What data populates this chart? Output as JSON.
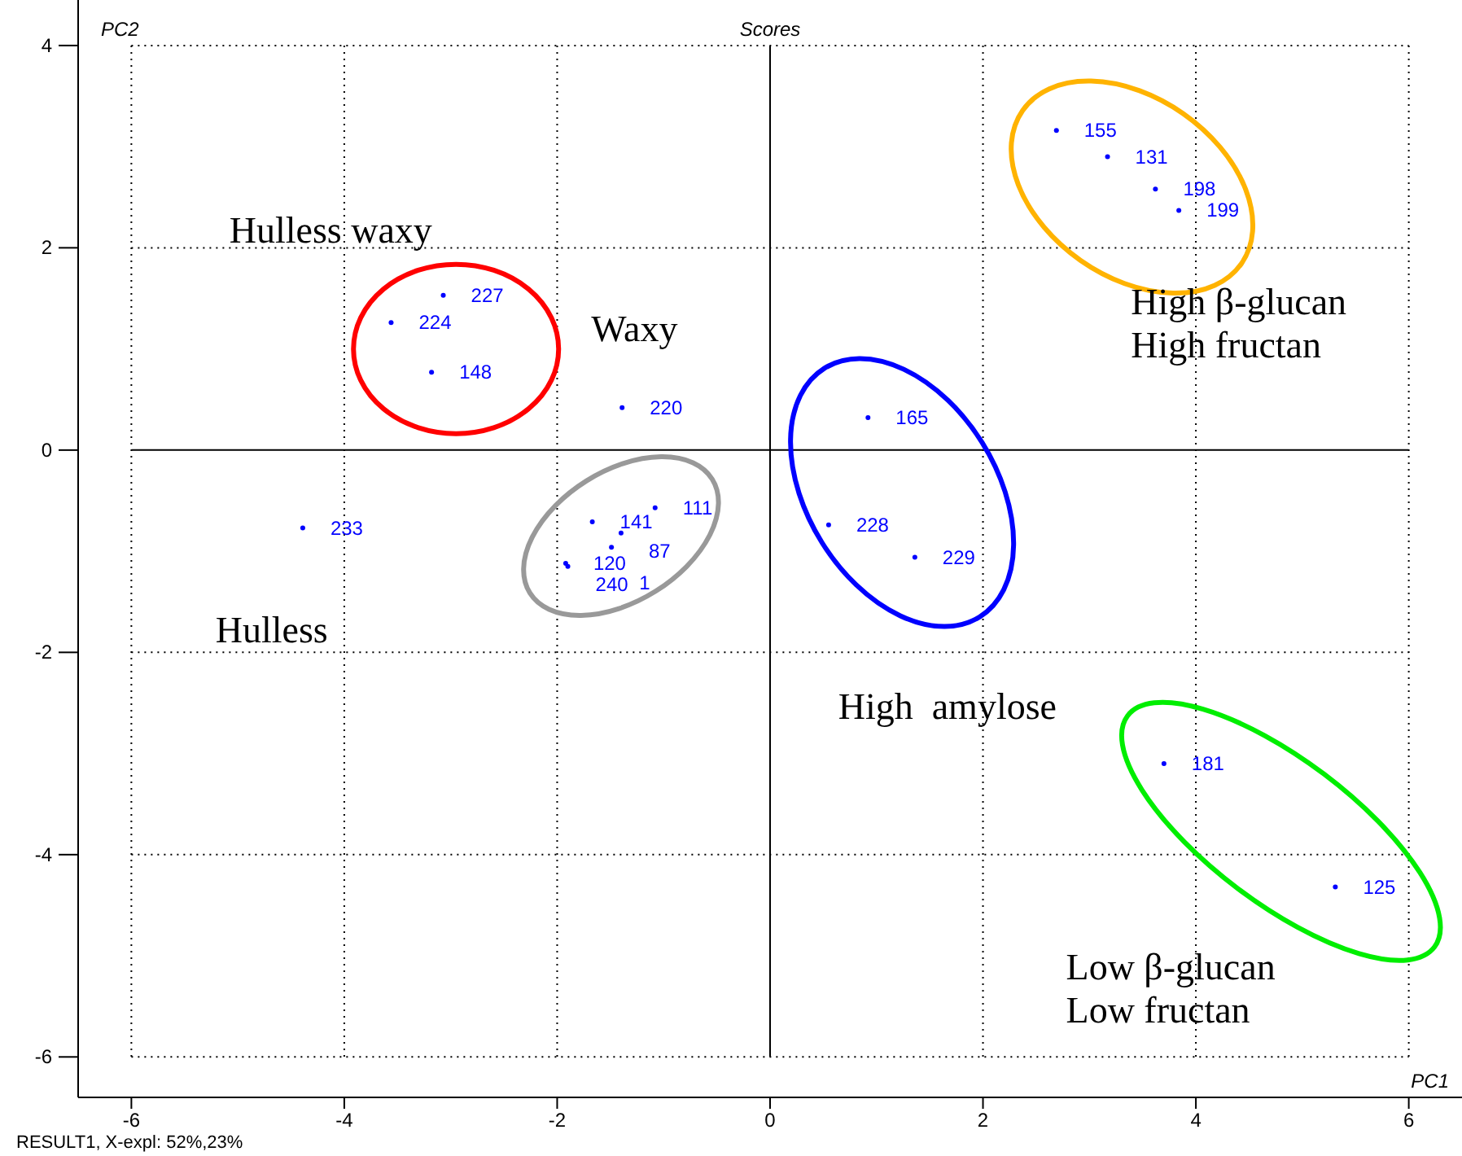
{
  "chart_data": {
    "type": "scatter",
    "title": "Scores",
    "xlabel": "PC1",
    "ylabel": "PC2",
    "x": [
      -3.07,
      -3.56,
      -3.18,
      -1.39,
      -4.39,
      0.92,
      0.55,
      1.36,
      2.69,
      3.17,
      3.62,
      3.84,
      3.7,
      5.31,
      -1.67,
      -1.4,
      -1.08,
      -1.49,
      -1.92,
      -1.9
    ],
    "series": [
      {
        "color": "#0000ff",
        "values": [
          1.53,
          1.26,
          0.77,
          0.42,
          -0.77,
          0.32,
          -0.74,
          -1.06,
          3.16,
          2.9,
          2.58,
          2.37,
          -3.1,
          -4.32,
          -0.71,
          -0.82,
          -0.57,
          -0.96,
          -1.12,
          -1.15
        ]
      }
    ],
    "xlim": [
      -6.5,
      6.5
    ],
    "ylim": [
      -6.4,
      4.45
    ],
    "xticks": [
      -6,
      -4,
      -2,
      0,
      2,
      4,
      6
    ],
    "yticks": [
      -6,
      -4,
      -2,
      0,
      2,
      4
    ],
    "grid": true,
    "marker": "circle",
    "annotations": [
      {
        "text": "227",
        "x": -3.07,
        "y": 1.53
      },
      {
        "text": "224",
        "x": -3.56,
        "y": 1.26
      },
      {
        "text": "148",
        "x": -3.18,
        "y": 0.77
      },
      {
        "text": "220",
        "x": -1.39,
        "y": 0.42
      },
      {
        "text": "233",
        "x": -4.39,
        "y": -0.77
      },
      {
        "text": "165",
        "x": 0.92,
        "y": 0.32
      },
      {
        "text": "228",
        "x": 0.55,
        "y": -0.74
      },
      {
        "text": "229",
        "x": 1.36,
        "y": -1.06
      },
      {
        "text": "155",
        "x": 2.69,
        "y": 3.16
      },
      {
        "text": "131",
        "x": 3.17,
        "y": 2.9
      },
      {
        "text": "198",
        "x": 3.62,
        "y": 2.58
      },
      {
        "text": "199",
        "x": 3.84,
        "y": 2.37
      },
      {
        "text": "181",
        "x": 3.7,
        "y": -3.1
      },
      {
        "text": "125",
        "x": 5.31,
        "y": -4.32
      },
      {
        "text": "141",
        "x": -1.67,
        "y": -0.71
      },
      {
        "text": "87",
        "x": -1.4,
        "y": -0.82
      },
      {
        "text": "111",
        "x": -1.08,
        "y": -0.57
      },
      {
        "text": "1",
        "x": -1.49,
        "y": -0.96
      },
      {
        "text": "120",
        "x": -1.92,
        "y": -1.12
      },
      {
        "text": "240",
        "x": -1.9,
        "y": -1.15
      },
      "Hulless waxy",
      "Waxy",
      "Hulless",
      "High  amylose",
      "High β-glucan",
      "High fructan",
      "Low β-glucan",
      "Low fructan",
      "RESULT1, X-expl: 52%,23%"
    ]
  }
}
